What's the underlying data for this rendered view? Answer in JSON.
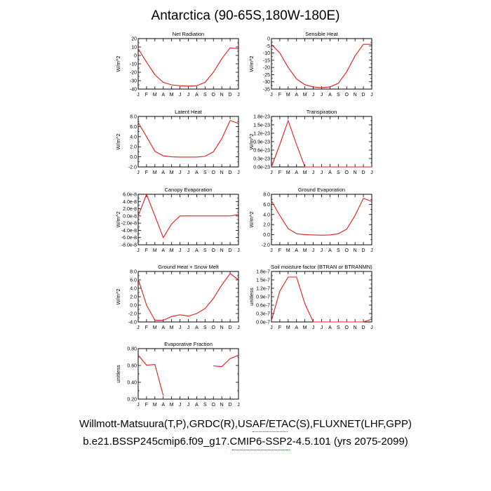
{
  "page": {
    "title": "Antarctica (90-65S,180W-180E)",
    "footer_line1": "Willmott-Matsuura(T,P),GRDC(R),USAF/ETAC(S),FLUXNET(LHF,GPP)",
    "footer_line2": "b.e21.BSSP245cmip6.f09_g17.CMIP6-SSP2-4.5.101 (yrs 2075-2099)",
    "line_color": "#e41a1c",
    "squiggle_color": "#e41a1c"
  },
  "chart_data": [
    {
      "type": "line",
      "title": "Net Radiation",
      "ylabel": "W/m^2",
      "categories": [
        "J",
        "F",
        "M",
        "A",
        "M",
        "J",
        "J",
        "A",
        "S",
        "O",
        "N",
        "D",
        "J"
      ],
      "ylim": [
        -40,
        20
      ],
      "yticks": [
        "20",
        "10",
        "0",
        "-10",
        "-20",
        "-30",
        "-40"
      ],
      "series": [
        {
          "values": [
            8,
            -8,
            -23,
            -32,
            -35,
            -36,
            -36.5,
            -36,
            -32,
            -20,
            -4,
            9,
            8
          ]
        }
      ]
    },
    {
      "type": "line",
      "title": "Sensible Heat",
      "ylabel": "W/m^2",
      "categories": [
        "J",
        "F",
        "M",
        "A",
        "M",
        "J",
        "J",
        "A",
        "S",
        "O",
        "N",
        "D",
        "J"
      ],
      "ylim": [
        -35,
        0
      ],
      "yticks": [
        "0",
        "-5",
        "-10",
        "-15",
        "-20",
        "-25",
        "-30",
        "-35"
      ],
      "series": [
        {
          "values": [
            -4,
            -10,
            -20,
            -28,
            -32,
            -33.5,
            -34,
            -33.5,
            -31,
            -23,
            -12,
            -4,
            -4
          ]
        }
      ]
    },
    {
      "type": "line",
      "title": "Latent Heat",
      "ylabel": "W/m^2",
      "categories": [
        "J",
        "F",
        "M",
        "A",
        "M",
        "J",
        "J",
        "A",
        "S",
        "O",
        "N",
        "D",
        "J"
      ],
      "ylim": [
        -2,
        8
      ],
      "yticks": [
        "8.0",
        "6.0",
        "4.0",
        "2.0",
        "0.0",
        "-2.0"
      ],
      "series": [
        {
          "values": [
            6.8,
            4.0,
            1.1,
            0.2,
            0.0,
            -0.05,
            -0.05,
            -0.05,
            0.1,
            1.0,
            3.6,
            7.2,
            6.6
          ]
        }
      ]
    },
    {
      "type": "line",
      "title": "Transpiration",
      "ylabel": "W/m^2",
      "categories": [
        "J",
        "F",
        "M",
        "A",
        "M",
        "J",
        "J",
        "A",
        "S",
        "O",
        "N",
        "D",
        "J"
      ],
      "ylim": [
        0,
        1.8e-23
      ],
      "yticks": [
        "1.8e-23",
        "1.5e-23",
        "1.2e-23",
        "0.9e-23",
        "0.6e-23",
        "0.3e-23",
        "0.0e-23"
      ],
      "series": [
        {
          "values": [
            0,
            8e-24,
            1.65e-23,
            8e-24,
            0,
            0,
            0,
            0,
            0,
            0,
            0,
            0,
            0
          ]
        }
      ]
    },
    {
      "type": "line",
      "title": "Canopy Evaporation",
      "ylabel": "W/m^2",
      "categories": [
        "J",
        "F",
        "M",
        "A",
        "M",
        "J",
        "J",
        "A",
        "S",
        "O",
        "N",
        "D",
        "J"
      ],
      "ylim": [
        -8e-08,
        6e-08
      ],
      "yticks": [
        "6.0e-8",
        "4.0e-8",
        "2.0e-8",
        "0.0e-8",
        "-2.0e-8",
        "-4.0e-8",
        "-6.0e-8",
        "-8.0e-8"
      ],
      "series": [
        {
          "values": [
            0,
            6e-08,
            0,
            -6e-08,
            -2.2e-08,
            0,
            0,
            0,
            0,
            0,
            0,
            0,
            4e-09
          ]
        }
      ]
    },
    {
      "type": "line",
      "title": "Ground Evaporation",
      "ylabel": "W/m^2",
      "categories": [
        "J",
        "F",
        "M",
        "A",
        "M",
        "J",
        "J",
        "A",
        "S",
        "O",
        "N",
        "D",
        "J"
      ],
      "ylim": [
        -2,
        8
      ],
      "yticks": [
        "8.0",
        "6.0",
        "4.0",
        "2.0",
        "0.0",
        "-2.0"
      ],
      "series": [
        {
          "values": [
            6.7,
            3.8,
            1.2,
            0.2,
            0.0,
            -0.05,
            -0.1,
            -0.05,
            0.2,
            1.1,
            3.8,
            7.2,
            6.6
          ]
        }
      ]
    },
    {
      "type": "line",
      "title": "Ground Heat + Snow Melt",
      "ylabel": "W/m^2",
      "categories": [
        "J",
        "F",
        "M",
        "A",
        "M",
        "J",
        "J",
        "A",
        "S",
        "O",
        "N",
        "D",
        "J"
      ],
      "ylim": [
        -4,
        8
      ],
      "yticks": [
        "8.0",
        "6.0",
        "4.0",
        "2.0",
        "0.0",
        "-2.0",
        "-4.0"
      ],
      "series": [
        {
          "values": [
            6.2,
            0.0,
            -3.6,
            -3.6,
            -2.7,
            -2.3,
            -2.6,
            -2.0,
            -0.8,
            1.6,
            4.8,
            7.5,
            6.0
          ]
        }
      ]
    },
    {
      "type": "line",
      "title": "Soil moisture factor (BTRAN or BTRANMN)",
      "ylabel": "unitless",
      "categories": [
        "J",
        "F",
        "M",
        "A",
        "M",
        "J",
        "J",
        "A",
        "S",
        "O",
        "N",
        "D",
        "J"
      ],
      "ylim": [
        0,
        1.8e-07
      ],
      "yticks": [
        "1.8e-7",
        "1.5e-7",
        "1.2e-7",
        "0.9e-7",
        "0.6e-7",
        "0.3e-7",
        "0.0e-7"
      ],
      "series": [
        {
          "values": [
            5e-09,
            1.1e-07,
            1.6e-07,
            1.6e-07,
            6.5e-08,
            0,
            0,
            0,
            0,
            0,
            0,
            0,
            1e-08
          ]
        }
      ]
    },
    {
      "type": "line",
      "title": "Evaporative Fraction",
      "ylabel": "unitless",
      "categories": [
        "J",
        "F",
        "M",
        "A",
        "M",
        "J",
        "J",
        "A",
        "S",
        "O",
        "N",
        "D",
        "J"
      ],
      "ylim": [
        0.1,
        0.8
      ],
      "yticks": [
        "0.80",
        "0.60",
        "0.40",
        "0.20"
      ],
      "series": [
        {
          "values": [
            0.71,
            0.57,
            0.58,
            0.15,
            null,
            null,
            null,
            null,
            null,
            0.56,
            0.55,
            0.66,
            0.71
          ]
        }
      ]
    }
  ]
}
